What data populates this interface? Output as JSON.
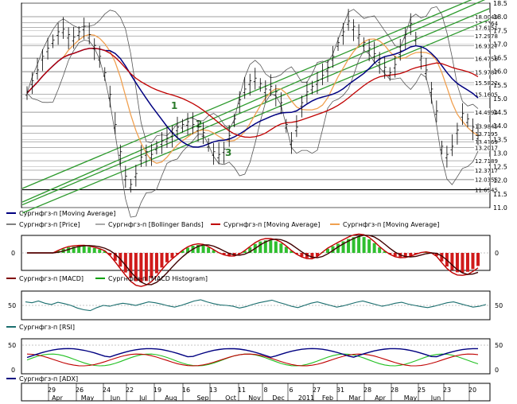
{
  "chart_data": {
    "type": "line",
    "price_panel": {
      "ylim": [
        11.0,
        18.5
      ],
      "yticks": [
        11.0,
        11.5,
        12.0,
        12.5,
        13.0,
        13.5,
        14.0,
        14.5,
        15.0,
        15.5,
        16.0,
        16.5,
        17.0,
        17.5,
        18.0,
        18.5
      ],
      "level_labels": [
        "18.0049",
        "17.7764",
        "17.6151",
        "17.2978",
        "16.9327",
        "16.4756",
        "15.9787",
        "15.5822",
        "15.1605",
        "14.4994",
        "13.9845",
        "13.7195",
        "13.4169",
        "13.2017",
        "12.7189",
        "12.3717",
        "12.0355",
        "11.6545"
      ],
      "channel_labels": [
        "1",
        "2",
        "3"
      ],
      "price": [
        15.2,
        15.6,
        16.0,
        16.5,
        16.8,
        17.1,
        17.4,
        17.5,
        17.3,
        17.2,
        17.4,
        17.6,
        17.3,
        16.9,
        16.5,
        15.9,
        15.1,
        14.0,
        13.0,
        12.1,
        11.8,
        12.2,
        12.8,
        13.0,
        12.9,
        13.2,
        13.4,
        13.5,
        13.7,
        13.9,
        14.0,
        14.1,
        14.0,
        13.9,
        13.7,
        13.3,
        13.0,
        12.9,
        13.1,
        13.6,
        14.2,
        14.9,
        15.3,
        15.6,
        15.7,
        15.5,
        15.3,
        15.4,
        15.2,
        14.8,
        14.0,
        13.4,
        13.9,
        14.8,
        15.2,
        15.4,
        15.6,
        15.8,
        16.1,
        16.5,
        17.0,
        17.4,
        17.8,
        17.6,
        17.3,
        17.0,
        16.8,
        16.6,
        16.4,
        16.1,
        15.9,
        16.2,
        16.7,
        17.3,
        17.7,
        17.2,
        16.5,
        16.0,
        15.3,
        14.5,
        13.2,
        12.9,
        13.2,
        13.8,
        14.4,
        14.2,
        13.9,
        13.6
      ],
      "series": [
        {
          "name": "Сургнфгз-п [Moving Average]",
          "color": "#000080"
        },
        {
          "name": "Сургнфгз-п [Price]",
          "color": "#000000"
        },
        {
          "name": "Сургнфгз-п [Bollinger Bands]",
          "color": "#555555"
        },
        {
          "name": "Сургнфгз-п [Moving Average]",
          "color": "#c00000"
        },
        {
          "name": "Сургнфгз-п [Moving Average]",
          "color": "#f0a050"
        }
      ]
    },
    "macd_panel": {
      "yticks": [
        "0"
      ],
      "series": [
        {
          "name": "Сургнфгз-п [MACD]",
          "color": "#800000"
        },
        {
          "name": "Сургнфгз-п [MACD Histogram]",
          "color": "#00a000"
        }
      ]
    },
    "rsi_panel": {
      "yticks": [
        "50"
      ],
      "series": [
        {
          "name": "Сургнфгз-п [RSI]",
          "color": "#1a6e6e"
        }
      ],
      "values": [
        58,
        56,
        60,
        55,
        52,
        57,
        54,
        50,
        44,
        40,
        38,
        45,
        50,
        48,
        52,
        55,
        53,
        50,
        54,
        58,
        56,
        53,
        49,
        46,
        50,
        55,
        60,
        63,
        58,
        54,
        51,
        50,
        48,
        44,
        47,
        52,
        56,
        59,
        62,
        57,
        53,
        48,
        45,
        50,
        55,
        58,
        54,
        50,
        46,
        49,
        53,
        57,
        60,
        56,
        52,
        48,
        51,
        55,
        57,
        53,
        50,
        47,
        45,
        48,
        52,
        56,
        58,
        54,
        50,
        46,
        48,
        52
      ]
    },
    "adx_panel": {
      "yticks": [
        "0",
        "50"
      ],
      "series": [
        {
          "name": "Сургнфгз-п [ADX]",
          "color": "#000080"
        }
      ]
    },
    "x_axis": {
      "day_labels": [
        "29",
        "26",
        "24",
        "22",
        "19",
        "16",
        "13",
        "11",
        "8",
        "6",
        "27",
        "31",
        "28",
        "28",
        "25",
        "23",
        "20"
      ],
      "month_labels": [
        "Apr",
        "May",
        "Jun",
        "Jul",
        "Aug",
        "Sep",
        "Oct",
        "Nov",
        "Dec",
        "2011",
        "Feb",
        "Mar",
        "Apr",
        "May",
        "Jun"
      ]
    }
  }
}
